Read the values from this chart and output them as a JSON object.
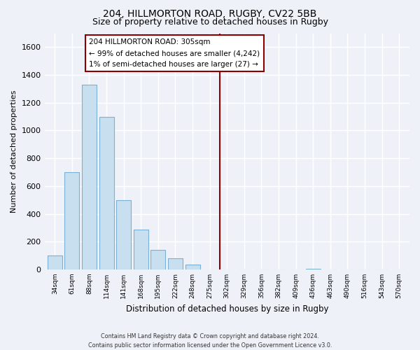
{
  "title": "204, HILLMORTON ROAD, RUGBY, CV22 5BB",
  "subtitle": "Size of property relative to detached houses in Rugby",
  "xlabel": "Distribution of detached houses by size in Rugby",
  "ylabel": "Number of detached properties",
  "footer_line1": "Contains HM Land Registry data © Crown copyright and database right 2024.",
  "footer_line2": "Contains public sector information licensed under the Open Government Licence v3.0.",
  "bar_labels": [
    "34sqm",
    "61sqm",
    "88sqm",
    "114sqm",
    "141sqm",
    "168sqm",
    "195sqm",
    "222sqm",
    "248sqm",
    "275sqm",
    "302sqm",
    "329sqm",
    "356sqm",
    "382sqm",
    "409sqm",
    "436sqm",
    "463sqm",
    "490sqm",
    "516sqm",
    "543sqm",
    "570sqm"
  ],
  "bar_values": [
    100,
    700,
    1330,
    1100,
    500,
    285,
    140,
    80,
    35,
    0,
    0,
    0,
    0,
    0,
    0,
    5,
    0,
    0,
    0,
    0,
    0
  ],
  "bar_color": "#c8dff0",
  "bar_edge_color": "#7ab0d4",
  "annotation_box_text_line1": "204 HILLMORTON ROAD: 305sqm",
  "annotation_box_text_line2": "← 99% of detached houses are smaller (4,242)",
  "annotation_box_text_line3": "1% of semi-detached houses are larger (27) →",
  "vline_color": "#8b0000",
  "ylim": [
    0,
    1700
  ],
  "yticks": [
    0,
    200,
    400,
    600,
    800,
    1000,
    1200,
    1400,
    1600
  ],
  "bg_color": "#eef2f8",
  "plot_bg_color": "#eef2f8",
  "grid_color": "#ffffff",
  "title_fontsize": 10,
  "subtitle_fontsize": 9
}
